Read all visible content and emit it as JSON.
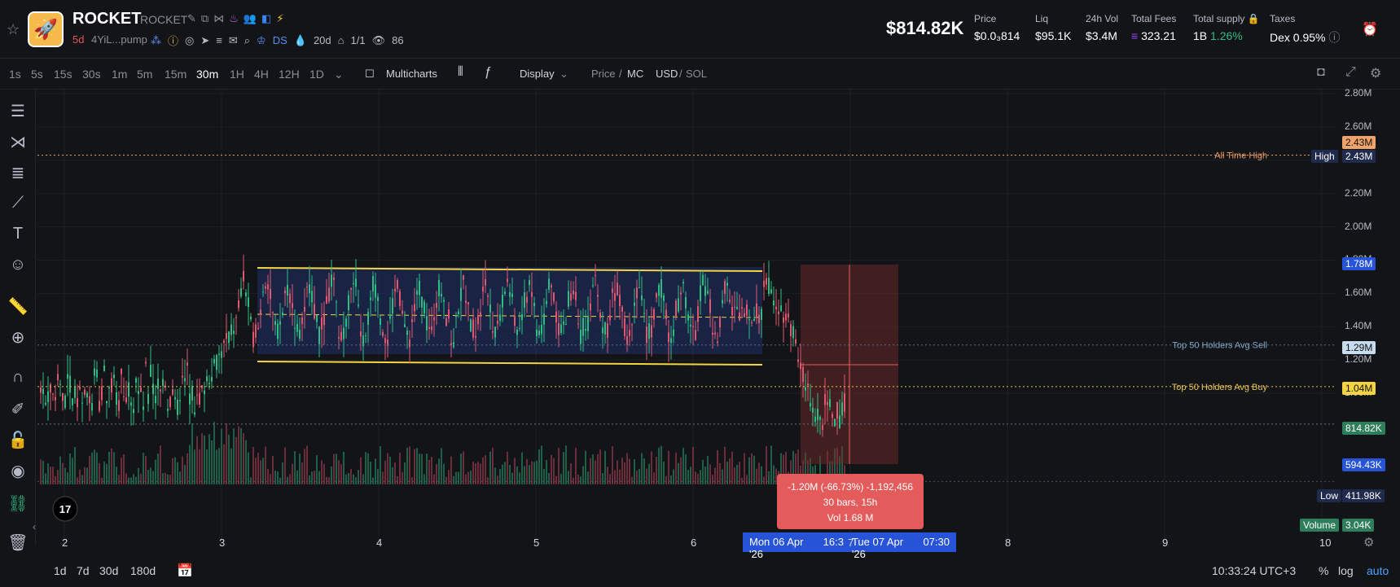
{
  "header": {
    "token_name": "ROCKET",
    "token_symbol": "ROCKET",
    "age": "5d",
    "address": "4YiL...pump",
    "ds_label": "DS",
    "days": "20d",
    "ratio": "1/1",
    "views": "86",
    "market_cap": "$814.82K",
    "stats": [
      {
        "label": "Price",
        "value": "$0.0₃814"
      },
      {
        "label": "Liq",
        "value": "$95.1K"
      },
      {
        "label": "24h Vol",
        "value": "$3.4M"
      },
      {
        "label": "Total Fees",
        "value": "323.21"
      },
      {
        "label": "Total supply",
        "value": "1B",
        "extra": "1.26%"
      },
      {
        "label": "Taxes",
        "value": "Dex 0.95%"
      }
    ]
  },
  "toolbar": {
    "timeframes": [
      "1s",
      "5s",
      "15s",
      "30s",
      "1m",
      "5m",
      "15m",
      "30m",
      "1H",
      "4H",
      "12H",
      "1D"
    ],
    "active_timeframe": "30m",
    "multicharts": "Multicharts",
    "display": "Display",
    "price_label": "Price",
    "mc_label": "MC",
    "usd_label": "USD",
    "sol_label": "SOL"
  },
  "chart_data": {
    "type": "candlestick",
    "price_levels": [
      "2.80M",
      "2.60M",
      "2.40M",
      "2.20M",
      "2.00M",
      "1.80M",
      "1.60M",
      "1.40M",
      "1.20M",
      "1.00M"
    ],
    "x_ticks": [
      "2",
      "3",
      "4",
      "5",
      "6",
      "7",
      "8",
      "9",
      "10"
    ],
    "lines": [
      {
        "label": "All Time High",
        "tag": "2.43M",
        "badge": "High",
        "badge_value": "2.43M",
        "value": 2.43
      },
      {
        "label": "Top 50 Holders Avg Sell",
        "value": 1.29,
        "tag": "1.29M"
      },
      {
        "label": "Top 50 Holders Avg Buy",
        "value": 1.04,
        "tag": "1.04M"
      }
    ],
    "tags": {
      "top": "2.43M",
      "sel_high": "1.78M",
      "current": "814.82K",
      "sel_low": "594.43K",
      "low_label": "Low",
      "low_value": "411.98K",
      "volume_label": "Volume",
      "volume_value": "3.04K"
    },
    "measure": {
      "line1": "-1.20M (-66.73%) -1,192,456",
      "line2": "30 bars, 15h",
      "line3": "Vol 1.68 M"
    },
    "crosshair": {
      "start": "Mon 06 Apr '26",
      "start_time": "16:3",
      "end": "Tue 07 Apr '26",
      "end_time": "07:30"
    }
  },
  "bottom": {
    "ranges": [
      "1d",
      "7d",
      "30d",
      "180d"
    ],
    "clock": "10:33:24 UTC+3",
    "pct": "%",
    "log": "log",
    "auto": "auto"
  }
}
